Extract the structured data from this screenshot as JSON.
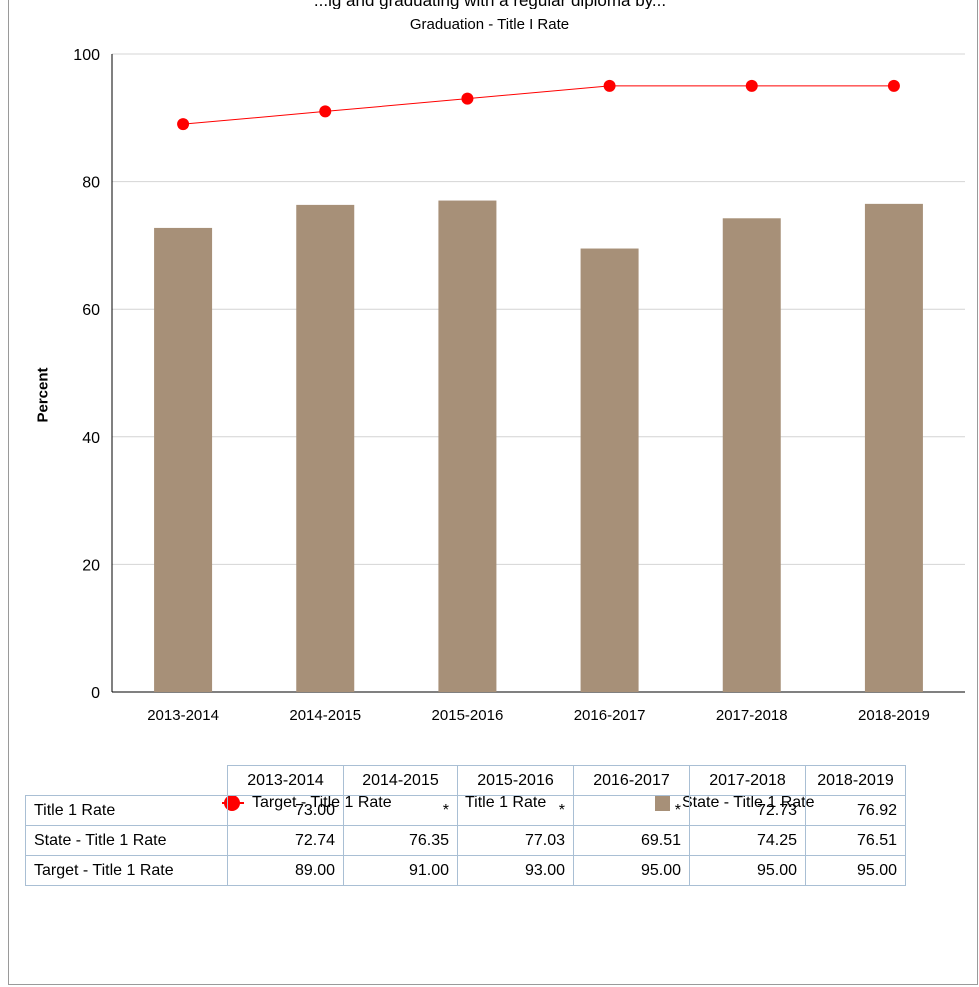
{
  "header_clip": "...ig and graduating with a regular diploma by...",
  "chart_data": {
    "type": "bar",
    "title": "Graduation - Title I Rate",
    "ylabel": "Percent",
    "xlabel": "",
    "ylim": [
      0,
      100
    ],
    "yticks": [
      0,
      20,
      40,
      60,
      80,
      100
    ],
    "grid": true,
    "categories": [
      "2013-2014",
      "2014-2015",
      "2015-2016",
      "2016-2017",
      "2017-2018",
      "2018-2019"
    ],
    "series": [
      {
        "name": "Target - Title 1 Rate",
        "kind": "line",
        "color": "#ff0000",
        "values": [
          89.0,
          91.0,
          93.0,
          95.0,
          95.0,
          95.0
        ]
      },
      {
        "name": "Title 1 Rate",
        "kind": "none",
        "color": "#ffffff",
        "values": [
          73.0,
          null,
          null,
          null,
          72.73,
          76.92
        ]
      },
      {
        "name": "State - Title 1 Rate",
        "kind": "bar",
        "color": "#a79078",
        "values": [
          72.74,
          76.35,
          77.03,
          69.51,
          74.25,
          76.51
        ]
      }
    ],
    "legend_position": "bottom",
    "table": {
      "headers": [
        "2013-2014",
        "2014-2015",
        "2015-2016",
        "2016-2017",
        "2017-2018",
        "2018-2019"
      ],
      "rows": [
        {
          "label": "Title 1 Rate",
          "cells": [
            "73.00",
            "*",
            "*",
            "*",
            "72.73",
            "76.92"
          ]
        },
        {
          "label": "State - Title 1 Rate",
          "cells": [
            "72.74",
            "76.35",
            "77.03",
            "69.51",
            "74.25",
            "76.51"
          ]
        },
        {
          "label": "Target - Title 1 Rate",
          "cells": [
            "89.00",
            "91.00",
            "93.00",
            "95.00",
            "95.00",
            "95.00"
          ]
        }
      ]
    }
  }
}
